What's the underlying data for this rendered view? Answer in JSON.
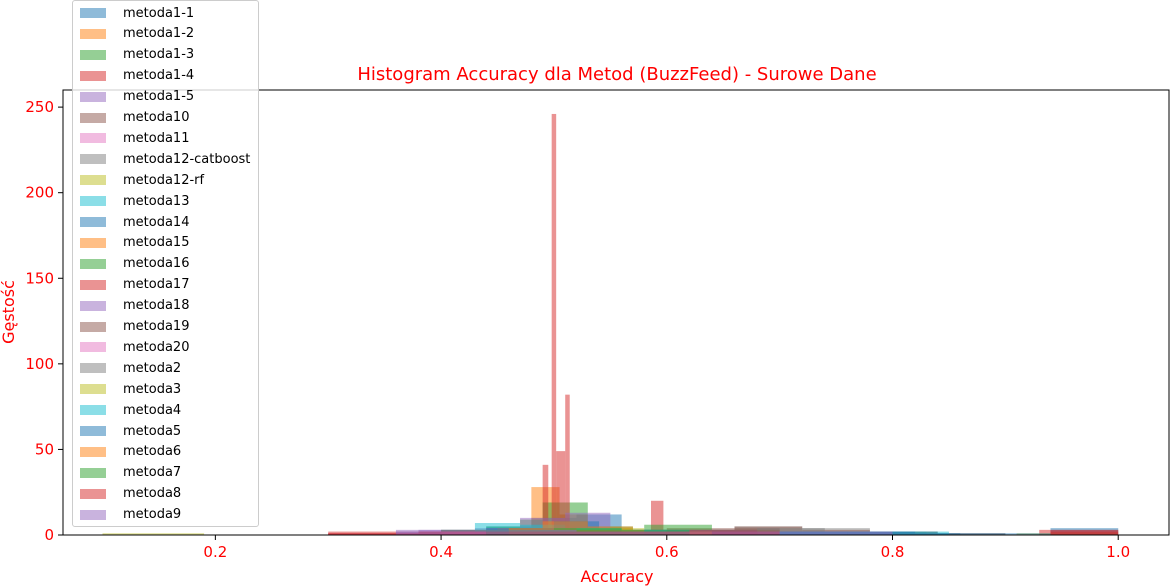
{
  "chart_data": {
    "type": "histogram",
    "title": "Histogram Accuracy dla Metod (BuzzFeed) - Surowe Dane",
    "xlabel": "Accuracy",
    "ylabel": "Gęstość",
    "xlim": [
      0.065,
      1.045
    ],
    "ylim": [
      0,
      260
    ],
    "xticks": [
      0.2,
      0.4,
      0.6,
      0.8,
      1.0
    ],
    "xtick_labels": [
      "0.2",
      "0.4",
      "0.6",
      "0.8",
      "1.0"
    ],
    "yticks": [
      0,
      50,
      100,
      150,
      200,
      250
    ],
    "ytick_labels": [
      "0",
      "50",
      "100",
      "150",
      "200",
      "250"
    ],
    "label_color": "#ff0000",
    "legend_position": "upper-left",
    "series": [
      {
        "name": "metoda1-1",
        "color": "#1f77b4",
        "bins": [
          [
            0.4,
            0.44,
            3
          ],
          [
            0.44,
            0.48,
            5
          ],
          [
            0.48,
            0.52,
            10
          ],
          [
            0.52,
            0.56,
            12
          ],
          [
            0.56,
            0.6,
            3
          ]
        ]
      },
      {
        "name": "metoda1-2",
        "color": "#ff7f0e",
        "bins": [
          [
            0.44,
            0.48,
            4
          ],
          [
            0.48,
            0.505,
            28
          ],
          [
            0.505,
            0.53,
            12
          ],
          [
            0.53,
            0.57,
            4
          ]
        ]
      },
      {
        "name": "metoda1-3",
        "color": "#2ca02c",
        "bins": [
          [
            0.44,
            0.47,
            5
          ],
          [
            0.47,
            0.49,
            9
          ],
          [
            0.49,
            0.53,
            19
          ],
          [
            0.53,
            0.57,
            5
          ],
          [
            0.57,
            0.61,
            3
          ]
        ]
      },
      {
        "name": "metoda1-4",
        "color": "#d62728",
        "bins": [
          [
            0.49,
            0.495,
            41
          ],
          [
            0.498,
            0.502,
            246
          ],
          [
            0.502,
            0.51,
            49
          ],
          [
            0.51,
            0.514,
            82
          ],
          [
            0.586,
            0.597,
            20
          ],
          [
            0.93,
            1.0,
            3
          ]
        ]
      },
      {
        "name": "metoda1-5",
        "color": "#9467bd",
        "bins": [
          [
            0.38,
            0.43,
            3
          ],
          [
            0.43,
            0.47,
            4
          ],
          [
            0.47,
            0.51,
            10
          ],
          [
            0.51,
            0.55,
            13
          ],
          [
            0.55,
            0.59,
            3
          ]
        ]
      },
      {
        "name": "metoda10",
        "color": "#8c564b",
        "bins": [
          [
            0.3,
            0.4,
            1
          ],
          [
            0.4,
            0.5,
            3
          ],
          [
            0.5,
            0.6,
            3
          ],
          [
            0.6,
            0.7,
            4
          ],
          [
            0.7,
            0.8,
            2
          ],
          [
            0.8,
            0.9,
            1
          ]
        ]
      },
      {
        "name": "metoda11",
        "color": "#e377c2",
        "bins": [
          [
            0.3,
            0.4,
            1
          ],
          [
            0.4,
            0.5,
            2
          ],
          [
            0.5,
            0.6,
            3
          ],
          [
            0.6,
            0.7,
            3
          ],
          [
            0.7,
            0.8,
            2
          ]
        ]
      },
      {
        "name": "metoda12-catboost",
        "color": "#7f7f7f",
        "bins": [
          [
            0.6,
            0.66,
            3
          ],
          [
            0.66,
            0.72,
            5
          ],
          [
            0.72,
            0.78,
            4
          ],
          [
            0.78,
            0.84,
            2
          ],
          [
            0.84,
            0.9,
            1
          ]
        ]
      },
      {
        "name": "metoda12-rf",
        "color": "#bcbd22",
        "bins": [
          [
            0.1,
            0.19,
            1
          ],
          [
            0.91,
            1.0,
            1
          ]
        ]
      },
      {
        "name": "metoda13",
        "color": "#17becf",
        "bins": [
          [
            0.43,
            0.47,
            7
          ],
          [
            0.47,
            0.51,
            6
          ],
          [
            0.51,
            0.55,
            4
          ],
          [
            0.55,
            0.6,
            3
          ],
          [
            0.75,
            0.83,
            2
          ]
        ]
      },
      {
        "name": "metoda14",
        "color": "#1f77b4",
        "bins": [
          [
            0.5,
            0.54,
            8
          ],
          [
            0.54,
            0.58,
            3
          ],
          [
            0.58,
            0.66,
            2
          ],
          [
            0.66,
            0.74,
            2
          ],
          [
            0.74,
            0.84,
            2
          ],
          [
            0.84,
            0.94,
            1
          ],
          [
            0.94,
            1.0,
            4
          ]
        ]
      },
      {
        "name": "metoda15",
        "color": "#ff7f0e",
        "bins": [
          [
            0.45,
            0.49,
            4
          ],
          [
            0.49,
            0.53,
            8
          ],
          [
            0.53,
            0.57,
            5
          ]
        ]
      },
      {
        "name": "metoda16",
        "color": "#2ca02c",
        "bins": [
          [
            0.4,
            0.46,
            3
          ],
          [
            0.46,
            0.52,
            4
          ],
          [
            0.52,
            0.58,
            3
          ],
          [
            0.58,
            0.64,
            6
          ],
          [
            0.64,
            0.7,
            3
          ]
        ]
      },
      {
        "name": "metoda17",
        "color": "#d62728",
        "bins": [
          [
            0.3,
            0.38,
            2
          ],
          [
            0.38,
            0.46,
            2
          ],
          [
            0.46,
            0.54,
            3
          ],
          [
            0.54,
            0.62,
            2
          ],
          [
            0.62,
            0.7,
            3
          ],
          [
            0.94,
            1.0,
            3
          ]
        ]
      },
      {
        "name": "metoda18",
        "color": "#9467bd",
        "bins": [
          [
            0.36,
            0.44,
            3
          ],
          [
            0.44,
            0.52,
            4
          ],
          [
            0.52,
            0.6,
            3
          ],
          [
            0.6,
            0.68,
            3
          ],
          [
            0.68,
            0.76,
            2
          ]
        ]
      },
      {
        "name": "metoda19",
        "color": "#8c564b",
        "bins": [
          [
            0.6,
            0.66,
            3
          ],
          [
            0.66,
            0.72,
            5
          ],
          [
            0.72,
            0.78,
            3
          ],
          [
            0.78,
            0.84,
            2
          ]
        ]
      },
      {
        "name": "metoda20",
        "color": "#e377c2",
        "bins": [
          [
            0.4,
            0.46,
            2
          ],
          [
            0.46,
            0.52,
            3
          ],
          [
            0.52,
            0.58,
            2
          ]
        ]
      },
      {
        "name": "metoda2",
        "color": "#7f7f7f",
        "bins": [
          [
            0.68,
            0.74,
            4
          ],
          [
            0.74,
            0.8,
            2
          ],
          [
            0.8,
            0.86,
            1
          ]
        ]
      },
      {
        "name": "metoda3",
        "color": "#bcbd22",
        "bins": [
          [
            0.46,
            0.52,
            3
          ],
          [
            0.52,
            0.58,
            4
          ],
          [
            0.58,
            0.64,
            2
          ]
        ]
      },
      {
        "name": "metoda4",
        "color": "#17becf",
        "bins": [
          [
            0.44,
            0.5,
            3
          ],
          [
            0.5,
            0.56,
            4
          ],
          [
            0.56,
            0.62,
            3
          ],
          [
            0.7,
            0.8,
            2
          ],
          [
            0.8,
            0.85,
            2
          ]
        ]
      },
      {
        "name": "metoda5",
        "color": "#1f77b4",
        "bins": [
          [
            0.44,
            0.5,
            4
          ],
          [
            0.5,
            0.56,
            3
          ],
          [
            0.56,
            0.62,
            2
          ],
          [
            0.7,
            0.76,
            2
          ],
          [
            0.76,
            0.82,
            2
          ],
          [
            0.82,
            0.86,
            1
          ]
        ]
      },
      {
        "name": "metoda6",
        "color": "#ff7f0e",
        "bins": [
          [
            0.46,
            0.52,
            4
          ],
          [
            0.52,
            0.58,
            3
          ],
          [
            0.58,
            0.64,
            2
          ]
        ]
      },
      {
        "name": "metoda7",
        "color": "#2ca02c",
        "bins": [
          [
            0.44,
            0.5,
            3
          ],
          [
            0.5,
            0.56,
            4
          ],
          [
            0.56,
            0.62,
            3
          ]
        ]
      },
      {
        "name": "metoda8",
        "color": "#d62728",
        "bins": [
          [
            0.3,
            0.38,
            1
          ],
          [
            0.38,
            0.46,
            2
          ],
          [
            0.46,
            0.54,
            2
          ],
          [
            0.54,
            0.62,
            2
          ],
          [
            0.62,
            0.7,
            2
          ],
          [
            0.94,
            1.0,
            2
          ]
        ]
      },
      {
        "name": "metoda9",
        "color": "#9467bd",
        "bins": [
          [
            0.36,
            0.44,
            2
          ],
          [
            0.44,
            0.52,
            3
          ],
          [
            0.52,
            0.6,
            2
          ],
          [
            0.6,
            0.68,
            2
          ],
          [
            0.68,
            0.76,
            2
          ],
          [
            0.76,
            0.8,
            2
          ]
        ]
      }
    ]
  }
}
